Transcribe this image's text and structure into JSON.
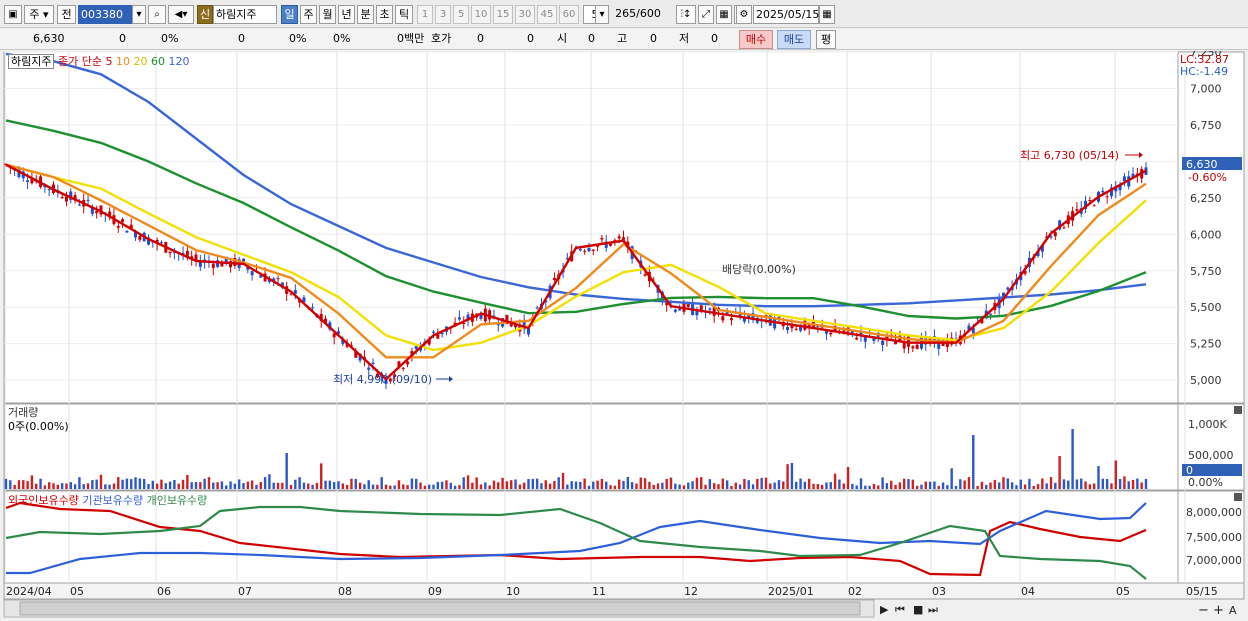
{
  "toolbar": {
    "buttons_left": [
      "주",
      "전"
    ],
    "code": "003380",
    "shin": "신",
    "stock_name": "하림지주",
    "period_tabs": [
      "일",
      "주",
      "월",
      "년",
      "분",
      "초",
      "틱"
    ],
    "active_period": "일",
    "intervals": [
      "1",
      "3",
      "5",
      "10",
      "15",
      "30",
      "45",
      "60"
    ],
    "interval_value": "5",
    "count": "265",
    "count_max": "/600",
    "date": "2025/05/15"
  },
  "quote": {
    "price": "6,630",
    "change": "0",
    "change_pct": "0%",
    "volume": "0",
    "volume_pct": "0%",
    "pct2": "0%",
    "amount": "0백만",
    "hoga_label": "호가",
    "hoga1": "0",
    "hoga2": "0",
    "open_label": "시",
    "open": "0",
    "high_label": "고",
    "high": "0",
    "low_label": "저",
    "low": "0",
    "buy_label": "매수",
    "sell_label": "매도",
    "eval_label": "평"
  },
  "price_panel": {
    "legend_name": "하림지주",
    "legend_ma_title": "종가 단순",
    "ma_periods": [
      "5",
      "10",
      "20",
      "60",
      "120"
    ],
    "ma_colors": [
      "#d00000",
      "#ef8a1c",
      "#f2e000",
      "#1e9030",
      "#3a66d8"
    ],
    "lc": "LC:32.87",
    "hc": "HC:-1.49",
    "y_ticks": [
      "7,250",
      "7,000",
      "6,750",
      "6,500",
      "6,250",
      "6,000",
      "5,750",
      "5,500",
      "5,250",
      "5,000"
    ],
    "current_price_tag": "6,630",
    "current_change_tag": "-0.60%",
    "high_annotation": "최고 6,730 (05/14)",
    "low_annotation": "최저 4,990 (09/10)",
    "dividend_annotation": "배당락(0.00%)"
  },
  "volume_panel": {
    "legend_name": "거래량",
    "value": "0주(0.00%)",
    "y_ticks": [
      "1,000K",
      "500,000",
      "0.00%"
    ],
    "current_tag": "0"
  },
  "holdings_panel": {
    "legends": [
      "외국인보유수량",
      "기관보유수량",
      "개인보유수량"
    ],
    "colors": [
      "#d00000",
      "#2f5fd8",
      "#2e8a4a"
    ],
    "y_ticks": [
      "8,000,000",
      "7,500,000",
      "7,000,000"
    ]
  },
  "x_axis": {
    "labels": [
      "2024/04",
      "05",
      "06",
      "07",
      "08",
      "09",
      "10",
      "11",
      "12",
      "2025/01",
      "02",
      "03",
      "04",
      "05",
      "05/15"
    ]
  },
  "chart_data": {
    "type": "line",
    "title": "하림지주",
    "series": [
      {
        "name": "5",
        "values": [
          6470,
          6300,
          6150,
          5960,
          5810,
          5790,
          5600,
          5300,
          5000,
          5300,
          5450,
          5350,
          5900,
          5950,
          5500,
          5450,
          5400,
          5350,
          5300,
          5250,
          5250,
          5550,
          6000,
          6250,
          6430
        ]
      },
      {
        "name": "120",
        "values": [
          7230,
          7180,
          7090,
          6900,
          6650,
          6400,
          6200,
          6050,
          5900,
          5800,
          5700,
          5630,
          5580,
          5550,
          5530,
          5510,
          5500,
          5500,
          5510,
          5520,
          5540,
          5560,
          5580,
          5610,
          5650
        ]
      }
    ],
    "ylim": [
      4850,
      7250
    ],
    "high": {
      "value": 6730,
      "date": "05/14"
    },
    "low": {
      "value": 4990,
      "date": "09/10"
    }
  }
}
